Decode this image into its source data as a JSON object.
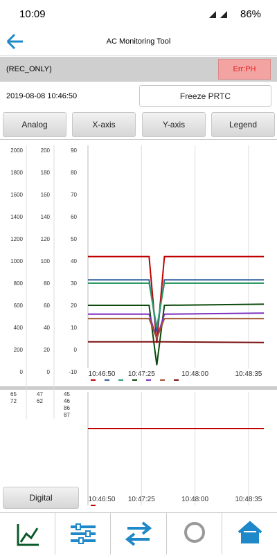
{
  "status_bar": {
    "time": "10:09",
    "battery": "86%"
  },
  "header": {
    "title": "AC Monitoring Tool"
  },
  "mode": "(REC_ONLY)",
  "error": "Err:PH",
  "timestamp": "2019-08-08 10:46:50",
  "freeze_button": "Freeze PRTC",
  "tabs": [
    "Analog",
    "X-axis",
    "Y-axis",
    "Legend"
  ],
  "chart_data": {
    "type": "line",
    "x": [
      "10:46:50",
      "10:47:30",
      "10:47:35",
      "10:47:40",
      "10:48:45"
    ],
    "xlim": [
      "10:46:50",
      "10:48:45"
    ],
    "xticks": [
      "10:46:50",
      "10:47:25",
      "10:48:00",
      "10:48:35"
    ],
    "ylim": [
      -10,
      90
    ],
    "yticks": [
      -10,
      0,
      10,
      20,
      30,
      40,
      50,
      60,
      70,
      80,
      90
    ],
    "y_axis_1_ticks": [
      0,
      200,
      400,
      600,
      800,
      1000,
      1200,
      1400,
      1600,
      1800,
      2000
    ],
    "y_axis_2_ticks": [
      0,
      20,
      40,
      60,
      80,
      100,
      120,
      140,
      160,
      180,
      200
    ],
    "series": [
      {
        "color": "#c00000",
        "values": [
          42,
          42,
          3,
          42,
          42
        ]
      },
      {
        "color": "#2f5d9e",
        "values": [
          31.5,
          31.5,
          8,
          31.5,
          31.5
        ]
      },
      {
        "color": "#2e9a6a",
        "values": [
          30,
          30,
          10,
          30,
          30
        ]
      },
      {
        "color": "#0a4a0a",
        "values": [
          20,
          20,
          -7,
          20,
          20.5
        ]
      },
      {
        "color": "#7b2fbf",
        "values": [
          16,
          16,
          5,
          16,
          16.5
        ]
      },
      {
        "color": "#a0522d",
        "values": [
          14,
          14,
          5,
          14,
          14
        ]
      },
      {
        "color": "#7a1010",
        "values": [
          3.5,
          3.5,
          3.5,
          3.5,
          3.2
        ]
      }
    ]
  },
  "readouts": [
    [
      {
        "text": "65",
        "color": "#2f5d9e"
      },
      {
        "text": "72",
        "color": "#7a1010"
      }
    ],
    [
      {
        "text": "47",
        "color": "#0a4a0a"
      },
      {
        "text": "62",
        "color": "#a0522d"
      }
    ],
    [
      {
        "text": "45",
        "color": "#333333"
      },
      {
        "text": "46",
        "color": "#c00000"
      },
      {
        "text": "86",
        "color": "#2e9a6a"
      },
      {
        "text": "87",
        "color": "#7b2fbf"
      }
    ]
  ],
  "digital_button": "Digital"
}
